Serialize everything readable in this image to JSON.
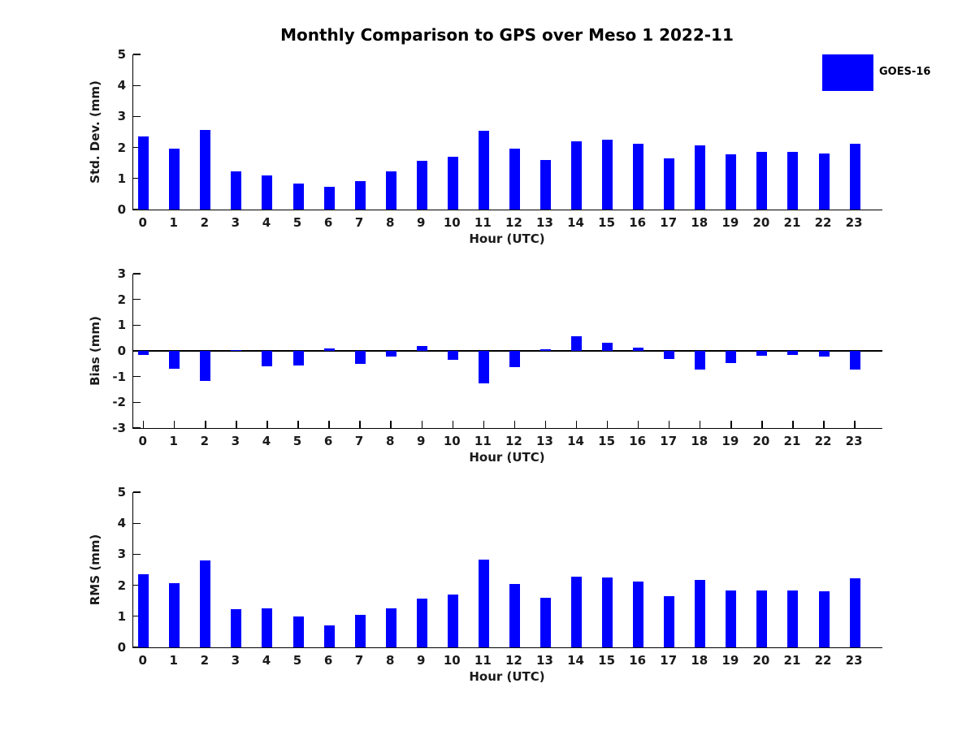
{
  "title": "Monthly Comparison to GPS over Meso 1 2022-11",
  "legend": {
    "label": "GOES-16",
    "color": "#0000ff",
    "position": "upper right outside plot"
  },
  "colors": {
    "bar": "#0000ff",
    "axis": "#000000",
    "text": "#1a1a1a",
    "background": "#ffffff"
  },
  "chart_data": [
    {
      "name": "std-dev",
      "type": "bar",
      "title": "",
      "xlabel": "Hour (UTC)",
      "ylabel": "Std. Dev. (mm)",
      "ylim": [
        0,
        5
      ],
      "yticks": [
        0,
        1,
        2,
        3,
        4,
        5
      ],
      "grid": false,
      "categories": [
        "0",
        "1",
        "2",
        "3",
        "4",
        "5",
        "6",
        "7",
        "8",
        "9",
        "10",
        "11",
        "12",
        "13",
        "14",
        "15",
        "16",
        "17",
        "18",
        "19",
        "20",
        "21",
        "22",
        "23"
      ],
      "series": [
        {
          "name": "GOES-16",
          "color": "#0000ff",
          "values": [
            2.36,
            1.96,
            2.56,
            1.23,
            1.1,
            0.83,
            0.72,
            0.91,
            1.23,
            1.57,
            1.71,
            2.55,
            1.97,
            1.6,
            2.2,
            2.25,
            2.13,
            1.65,
            2.07,
            1.78,
            1.86,
            1.85,
            1.8,
            2.12
          ]
        }
      ]
    },
    {
      "name": "bias",
      "type": "bar",
      "title": "",
      "xlabel": "Hour (UTC)",
      "ylabel": "Bias (mm)",
      "ylim": [
        -3,
        3
      ],
      "yticks": [
        3,
        2,
        1,
        0,
        -1,
        -2,
        -3
      ],
      "grid": false,
      "zero_line": true,
      "categories": [
        "0",
        "1",
        "2",
        "3",
        "4",
        "5",
        "6",
        "7",
        "8",
        "9",
        "10",
        "11",
        "12",
        "13",
        "14",
        "15",
        "16",
        "17",
        "18",
        "19",
        "20",
        "21",
        "22",
        "23"
      ],
      "series": [
        {
          "name": "GOES-16",
          "color": "#0000ff",
          "values": [
            -0.15,
            -0.68,
            -1.17,
            0.04,
            -0.6,
            -0.56,
            0.1,
            -0.52,
            -0.23,
            0.2,
            -0.35,
            -1.25,
            -0.62,
            0.05,
            0.58,
            0.31,
            0.14,
            -0.32,
            -0.72,
            -0.48,
            -0.2,
            -0.16,
            -0.21,
            -0.74
          ]
        }
      ]
    },
    {
      "name": "rms",
      "type": "bar",
      "title": "",
      "xlabel": "Hour (UTC)",
      "ylabel": "RMS (mm)",
      "ylim": [
        0,
        5
      ],
      "yticks": [
        0,
        1,
        2,
        3,
        4,
        5
      ],
      "grid": false,
      "categories": [
        "0",
        "1",
        "2",
        "3",
        "4",
        "5",
        "6",
        "7",
        "8",
        "9",
        "10",
        "11",
        "12",
        "13",
        "14",
        "15",
        "16",
        "17",
        "18",
        "19",
        "20",
        "21",
        "22",
        "23"
      ],
      "series": [
        {
          "name": "GOES-16",
          "color": "#0000ff",
          "values": [
            2.36,
            2.08,
            2.8,
            1.23,
            1.25,
            0.99,
            0.7,
            1.04,
            1.25,
            1.56,
            1.71,
            2.82,
            2.05,
            1.6,
            2.27,
            2.26,
            2.12,
            1.66,
            2.18,
            1.84,
            1.84,
            1.84,
            1.8,
            2.23
          ]
        }
      ]
    }
  ]
}
